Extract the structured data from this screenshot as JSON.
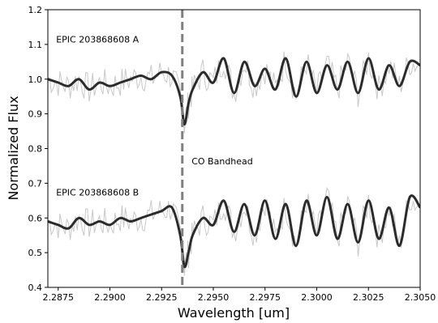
{
  "chart_data": {
    "type": "line",
    "xlabel": "Wavelength [um]",
    "ylabel": "Normalized Flux",
    "xlim": [
      2.287,
      2.305
    ],
    "ylim": [
      0.4,
      1.2
    ],
    "x_ticks": [
      "2.2875",
      "2.2900",
      "2.2925",
      "2.2950",
      "2.2975",
      "2.3000",
      "2.3025",
      "2.3050"
    ],
    "y_ticks": [
      "0.4",
      "0.5",
      "0.6",
      "0.7",
      "0.8",
      "0.9",
      "1.0",
      "1.1",
      "1.2"
    ],
    "grid": false,
    "colors": {
      "raw": "#c8c8c8",
      "smooth": "#2b2b2b",
      "bandhead_line": "#808080"
    },
    "annotations": [
      {
        "text": "EPIC 203868608 A",
        "x": 2.2874,
        "y": 1.105
      },
      {
        "text": "EPIC 203868608 B",
        "x": 2.2874,
        "y": 0.665
      },
      {
        "text": "CO Bandhead",
        "x": 2.29395,
        "y": 0.755
      }
    ],
    "bandhead_x": 2.2935,
    "series": [
      {
        "x": [
          2.287,
          2.2875,
          2.288,
          2.2885,
          2.289,
          2.2895,
          2.29,
          2.2905,
          2.291,
          2.2915,
          2.292,
          2.2925,
          2.293,
          2.2934,
          2.2936,
          2.2938,
          2.294,
          2.2945,
          2.295,
          2.2955,
          2.296,
          2.2965,
          2.297,
          2.2975,
          2.298,
          2.2985,
          2.299,
          2.2995,
          2.3,
          2.3005,
          2.301,
          2.3015,
          2.302,
          2.3025,
          2.303,
          2.3035,
          2.304,
          2.3045,
          2.305
        ],
        "y": [
          1.0,
          0.99,
          0.98,
          1.0,
          0.97,
          0.99,
          0.98,
          0.99,
          1.0,
          1.01,
          1.0,
          1.02,
          1.01,
          0.95,
          0.87,
          0.93,
          0.97,
          1.02,
          0.99,
          1.06,
          0.96,
          1.05,
          0.98,
          1.03,
          0.97,
          1.06,
          0.95,
          1.05,
          0.96,
          1.04,
          0.97,
          1.05,
          0.96,
          1.06,
          0.97,
          1.04,
          0.98,
          1.05,
          1.04
        ]
      },
      {
        "x": [
          2.287,
          2.2875,
          2.288,
          2.2885,
          2.289,
          2.2895,
          2.29,
          2.2905,
          2.291,
          2.2915,
          2.292,
          2.2925,
          2.293,
          2.2934,
          2.2936,
          2.2938,
          2.294,
          2.2945,
          2.295,
          2.2955,
          2.296,
          2.2965,
          2.297,
          2.2975,
          2.298,
          2.2985,
          2.299,
          2.2995,
          2.3,
          2.3005,
          2.301,
          2.3015,
          2.302,
          2.3025,
          2.303,
          2.3035,
          2.304,
          2.3045,
          2.305
        ],
        "y": [
          0.59,
          0.58,
          0.57,
          0.6,
          0.58,
          0.59,
          0.58,
          0.6,
          0.59,
          0.6,
          0.61,
          0.62,
          0.63,
          0.55,
          0.46,
          0.5,
          0.55,
          0.6,
          0.58,
          0.65,
          0.56,
          0.64,
          0.55,
          0.65,
          0.54,
          0.64,
          0.52,
          0.65,
          0.55,
          0.66,
          0.54,
          0.64,
          0.53,
          0.65,
          0.54,
          0.63,
          0.52,
          0.66,
          0.63
        ]
      }
    ]
  }
}
